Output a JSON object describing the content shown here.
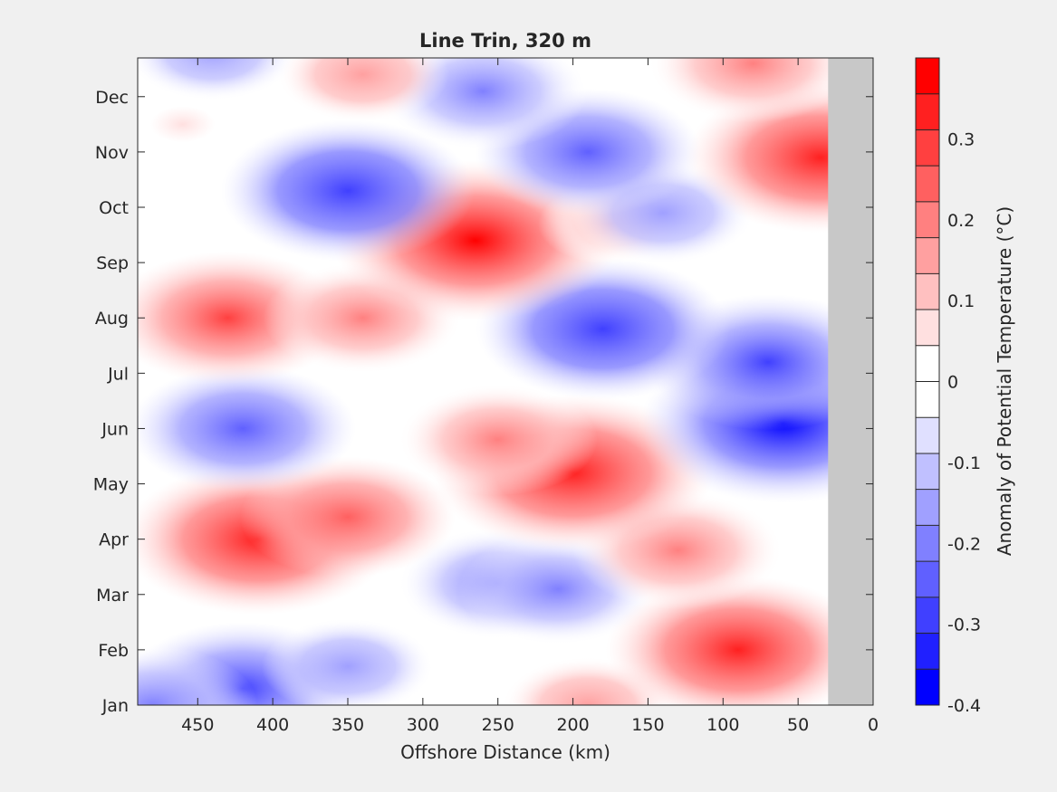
{
  "chart_data": {
    "type": "heatmap",
    "subtype": "filled-contour",
    "title": "Line Trin, 320 m",
    "xlabel": "Offshore Distance (km)",
    "ylabel": "",
    "x_reversed": true,
    "xlim": [
      490,
      0
    ],
    "x_ticks": [
      450,
      400,
      350,
      300,
      250,
      200,
      150,
      100,
      50,
      0
    ],
    "y_ticks": [
      "Jan",
      "Feb",
      "Mar",
      "Apr",
      "May",
      "Jun",
      "Jul",
      "Aug",
      "Sep",
      "Oct",
      "Nov",
      "Dec"
    ],
    "no_data_region_km": [
      30,
      0
    ],
    "no_data_color": "#c8c8c8",
    "zero_contour_color": "#000000",
    "colorbar": {
      "label": "Anomaly of Potential Temperature (°C)",
      "clim": [
        -0.4,
        0.4
      ],
      "levels": [
        -0.4,
        -0.35,
        -0.3,
        -0.25,
        -0.2,
        -0.15,
        -0.1,
        -0.05,
        0,
        0.05,
        0.1,
        0.15,
        0.2,
        0.25,
        0.3,
        0.35,
        0.4
      ],
      "tick_values": [
        -0.4,
        -0.3,
        -0.2,
        -0.1,
        0,
        0.1,
        0.2,
        0.3
      ],
      "tick_labels": [
        "-0.4",
        "-0.3",
        "-0.2",
        "-0.1",
        "0",
        "0.1",
        "0.2",
        "0.3"
      ],
      "colors": [
        "#0000ff",
        "#2020ff",
        "#4040ff",
        "#6060ff",
        "#8080ff",
        "#a0a0ff",
        "#c0c0ff",
        "#e0e0ff",
        "#ffffff",
        "#ffffff",
        "#ffe0e0",
        "#ffc0c0",
        "#ffa0a0",
        "#ff8080",
        "#ff6060",
        "#ff4040",
        "#ff2020",
        "#ff0000"
      ]
    },
    "anomalies": [
      {
        "x": 420,
        "month": 1.3,
        "value": -0.27
      },
      {
        "x": 480,
        "month": 1.0,
        "value": -0.22
      },
      {
        "x": 350,
        "month": 1.7,
        "value": -0.15
      },
      {
        "x": 250,
        "month": 3.2,
        "value": -0.2
      },
      {
        "x": 210,
        "month": 3.1,
        "value": -0.2
      },
      {
        "x": 190,
        "month": 1.0,
        "value": 0.15
      },
      {
        "x": 90,
        "month": 2.0,
        "value": 0.32
      },
      {
        "x": 130,
        "month": 3.8,
        "value": 0.22
      },
      {
        "x": 410,
        "month": 4.0,
        "value": 0.33
      },
      {
        "x": 350,
        "month": 4.4,
        "value": 0.23
      },
      {
        "x": 200,
        "month": 5.2,
        "value": 0.35
      },
      {
        "x": 250,
        "month": 5.8,
        "value": 0.2
      },
      {
        "x": 420,
        "month": 6.0,
        "value": -0.25
      },
      {
        "x": 60,
        "month": 6.1,
        "value": -0.36
      },
      {
        "x": 70,
        "month": 7.2,
        "value": -0.28
      },
      {
        "x": 180,
        "month": 7.8,
        "value": -0.3
      },
      {
        "x": 430,
        "month": 8.0,
        "value": 0.27
      },
      {
        "x": 340,
        "month": 8.0,
        "value": 0.2
      },
      {
        "x": 265,
        "month": 9.4,
        "value": 0.36
      },
      {
        "x": 175,
        "month": 9.7,
        "value": 0.1
      },
      {
        "x": 140,
        "month": 9.9,
        "value": -0.17
      },
      {
        "x": 350,
        "month": 10.3,
        "value": -0.3
      },
      {
        "x": 190,
        "month": 11.0,
        "value": -0.25
      },
      {
        "x": 35,
        "month": 10.9,
        "value": 0.33
      },
      {
        "x": 80,
        "month": 12.6,
        "value": 0.22
      },
      {
        "x": 260,
        "month": 12.1,
        "value": -0.22
      },
      {
        "x": 440,
        "month": 12.8,
        "value": -0.15
      },
      {
        "x": 340,
        "month": 12.4,
        "value": 0.15
      },
      {
        "x": 460,
        "month": 11.5,
        "value": 0.05
      },
      {
        "x": 300,
        "month": 6.3,
        "value": 0.0
      }
    ]
  }
}
